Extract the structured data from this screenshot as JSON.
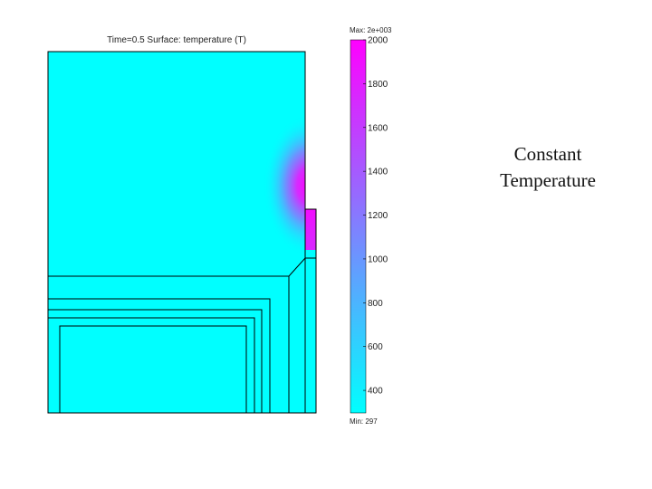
{
  "plot": {
    "title": "Time=0.5  Surface: temperature (T)",
    "base_color": "#00ffff",
    "hot_color": "#ff00ff"
  },
  "colorbar": {
    "max_label": "Max: 2e+003",
    "min_label": "Min: 297",
    "ticks": [
      {
        "value": 2000,
        "label": "2000"
      },
      {
        "value": 1800,
        "label": "1800"
      },
      {
        "value": 1600,
        "label": "1600"
      },
      {
        "value": 1400,
        "label": "1400"
      },
      {
        "value": 1200,
        "label": "1200"
      },
      {
        "value": 1000,
        "label": "1000"
      },
      {
        "value": 800,
        "label": "800"
      },
      {
        "value": 600,
        "label": "600"
      },
      {
        "value": 400,
        "label": "400"
      }
    ],
    "min_value": 297,
    "max_value": 2000,
    "color_low": "#00ffff",
    "color_high": "#ff00ff"
  },
  "annotation": {
    "line1": "Constant",
    "line2": "Temperature"
  }
}
